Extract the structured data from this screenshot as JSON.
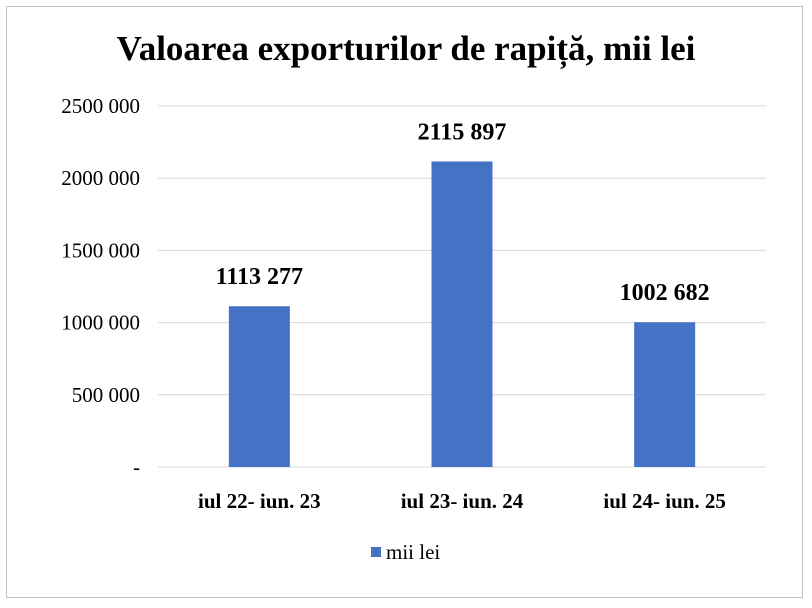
{
  "chart_data": {
    "type": "bar",
    "title": "Valoarea exporturilor de rapiță, mii lei",
    "categories": [
      "iul 22- iun. 23",
      "iul 23- iun. 24",
      "iul 24- iun. 25"
    ],
    "series": [
      {
        "name": "mii lei",
        "values": [
          1113277,
          2115897,
          1002682
        ],
        "value_labels": [
          "1113 277",
          "2115 897",
          "1002 682"
        ],
        "color": "#4472C4"
      }
    ],
    "ylim": [
      0,
      2500000
    ],
    "yticks": [
      0,
      500000,
      1000000,
      1500000,
      2000000,
      2500000
    ],
    "ytick_labels": [
      "-",
      "500 000",
      "1000 000",
      "1500 000",
      "2000 000",
      "2500 000"
    ],
    "xlabel": "",
    "ylabel": "",
    "grid": true,
    "gridline_color": "#d9d9d9",
    "legend_position": "bottom"
  }
}
